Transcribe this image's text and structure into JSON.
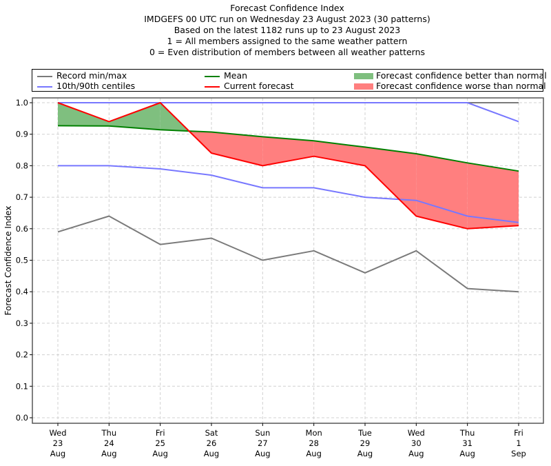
{
  "chart_data": {
    "type": "line",
    "title": [
      "Forecast Confidence Index",
      "IMDGEFS 00 UTC run on Wednesday 23 August 2023 (30 patterns)",
      "Based on the latest 1182 runs up to 23 August 2023",
      "1 = All members assigned to the same weather pattern",
      "0 = Even distribution of members between all weather patterns"
    ],
    "xlabel": "",
    "ylabel": "Forecast Confidence Index",
    "ylim": [
      0.0,
      1.0
    ],
    "yticks": [
      "0.0",
      "0.1",
      "0.2",
      "0.3",
      "0.4",
      "0.5",
      "0.6",
      "0.7",
      "0.8",
      "0.9",
      "1.0"
    ],
    "ytick_values": [
      0.0,
      0.1,
      0.2,
      0.3,
      0.4,
      0.5,
      0.6,
      0.7,
      0.8,
      0.9,
      1.0
    ],
    "grid": true,
    "legend_placement": "top (above plot)",
    "categories": [
      [
        "Wed",
        "23",
        "Aug"
      ],
      [
        "Thu",
        "24",
        "Aug"
      ],
      [
        "Fri",
        "25",
        "Aug"
      ],
      [
        "Sat",
        "26",
        "Aug"
      ],
      [
        "Sun",
        "27",
        "Aug"
      ],
      [
        "Mon",
        "28",
        "Aug"
      ],
      [
        "Tue",
        "29",
        "Aug"
      ],
      [
        "Wed",
        "30",
        "Aug"
      ],
      [
        "Thu",
        "31",
        "Aug"
      ],
      [
        "Fri",
        "1",
        "Sep"
      ]
    ],
    "legend": [
      {
        "label": "Record min/max",
        "type": "line",
        "color": "#7a7a7a"
      },
      {
        "label": "Mean",
        "type": "line",
        "color": "#008000"
      },
      {
        "label": "Forecast confidence better than normal",
        "type": "patch",
        "color": "#7fbf7f"
      },
      {
        "label": "10th/90th centiles",
        "type": "line",
        "color": "#7777ff"
      },
      {
        "label": "Current forecast",
        "type": "line",
        "color": "#ff0000"
      },
      {
        "label": "Forecast confidence worse than normal",
        "type": "patch",
        "color": "#ff7f7f"
      }
    ],
    "series": [
      {
        "name": "Record max",
        "color": "#7a7a7a",
        "values": [
          1.0,
          1.0,
          1.0,
          1.0,
          1.0,
          1.0,
          1.0,
          1.0,
          1.0,
          1.0
        ]
      },
      {
        "name": "Record min",
        "color": "#7a7a7a",
        "values": [
          0.59,
          0.64,
          0.55,
          0.57,
          0.5,
          0.53,
          0.46,
          0.53,
          0.41,
          0.4
        ]
      },
      {
        "name": "90th centile",
        "color": "#7777ff",
        "values": [
          1.0,
          1.0,
          1.0,
          1.0,
          1.0,
          1.0,
          1.0,
          1.0,
          1.0,
          0.94
        ]
      },
      {
        "name": "10th centile",
        "color": "#7777ff",
        "values": [
          0.8,
          0.8,
          0.79,
          0.77,
          0.73,
          0.73,
          0.7,
          0.69,
          0.64,
          0.62
        ]
      },
      {
        "name": "Mean",
        "color": "#008000",
        "values": [
          0.927,
          0.926,
          0.914,
          0.907,
          0.892,
          0.879,
          0.859,
          0.838,
          0.809,
          0.783
        ]
      },
      {
        "name": "Current forecast",
        "color": "#ff0000",
        "values": [
          1.0,
          0.94,
          1.0,
          0.84,
          0.8,
          0.83,
          0.8,
          0.64,
          0.6,
          0.61
        ]
      }
    ],
    "fills": {
      "better_color": "#7fbf7f",
      "worse_color": "#ff7f7f"
    }
  }
}
